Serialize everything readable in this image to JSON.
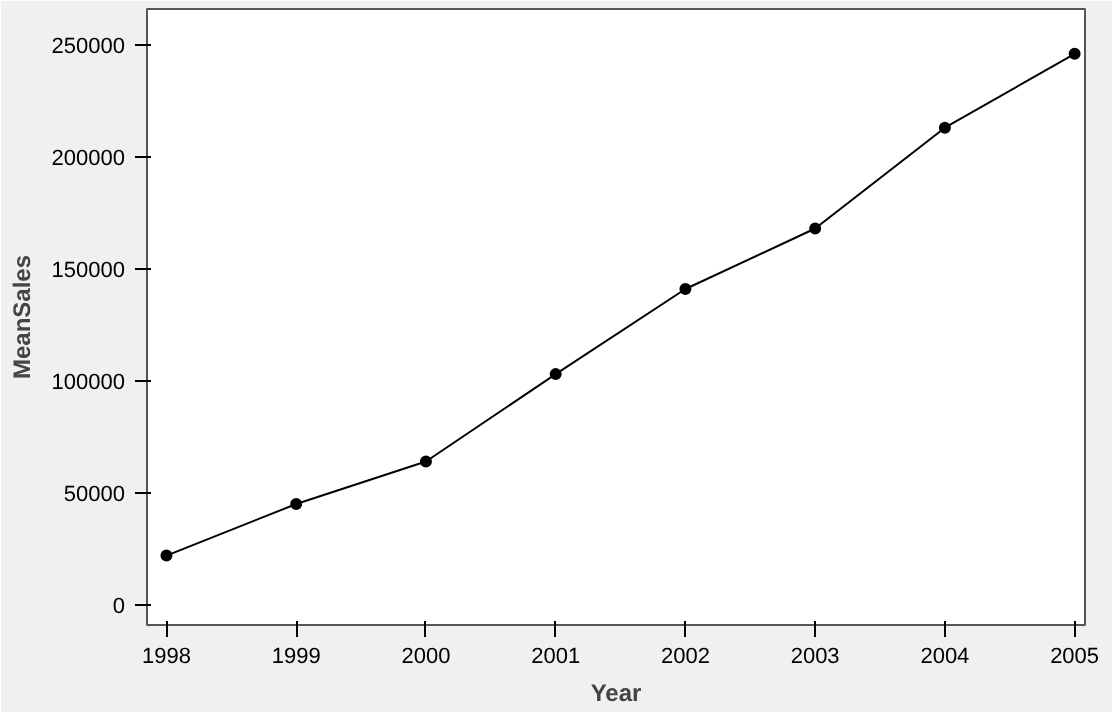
{
  "chart_data": {
    "type": "line",
    "xlabel": "Year",
    "ylabel": "MeanSales",
    "x": [
      1998,
      1999,
      2000,
      2001,
      2002,
      2003,
      2004,
      2005
    ],
    "series": [
      {
        "color": "#000000",
        "values": [
          22000,
          45000,
          64000,
          103000,
          141000,
          168000,
          213000,
          246000
        ]
      }
    ],
    "xlim": [
      1997.85,
      2005.08
    ],
    "ylim": [
      -9000,
      266000
    ],
    "xticks": [
      1998,
      1999,
      2000,
      2001,
      2002,
      2003,
      2004,
      2005
    ],
    "yticks": [
      0,
      50000,
      100000,
      150000,
      200000,
      250000
    ],
    "grid": false,
    "marker": "circle",
    "line_style": "solid"
  }
}
